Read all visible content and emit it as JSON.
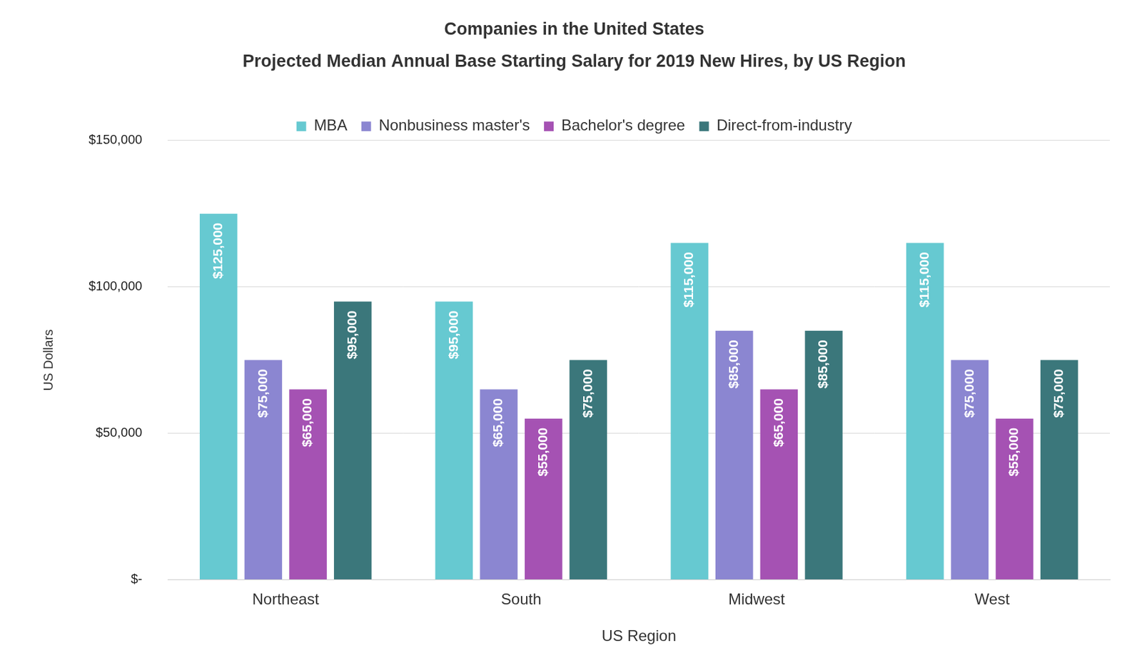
{
  "chart_data": {
    "type": "bar",
    "title": "Companies in the United States",
    "subtitle": "Projected Median Annual Base Starting Salary for 2019 New Hires, by US Region",
    "x_label": "US Region",
    "y_label": "US Dollars",
    "categories": [
      "Northeast",
      "South",
      "Midwest",
      "West"
    ],
    "series": [
      {
        "name": "MBA",
        "color": "#66c9d1",
        "values": [
          125000,
          95000,
          115000,
          115000
        ],
        "value_labels": [
          "$125,000",
          "$95,000",
          "$115,000",
          "$115,000"
        ]
      },
      {
        "name": "Nonbusiness master's",
        "color": "#8b86d1",
        "values": [
          75000,
          65000,
          85000,
          75000
        ],
        "value_labels": [
          "$75,000",
          "$65,000",
          "$85,000",
          "$75,000"
        ]
      },
      {
        "name": "Bachelor's degree",
        "color": "#a552b3",
        "values": [
          65000,
          55000,
          65000,
          55000
        ],
        "value_labels": [
          "$65,000",
          "$55,000",
          "$65,000",
          "$55,000"
        ]
      },
      {
        "name": "Direct-from-industry",
        "color": "#3b777b",
        "values": [
          95000,
          75000,
          85000,
          75000
        ],
        "value_labels": [
          "$95,000",
          "$75,000",
          "$85,000",
          "$75,000"
        ]
      }
    ],
    "ylim": [
      0,
      150000
    ],
    "yticks": [
      {
        "value": 0,
        "label": "$-"
      },
      {
        "value": 50000,
        "label": "$50,000"
      },
      {
        "value": 100000,
        "label": "$100,000"
      },
      {
        "value": 150000,
        "label": "$150,000"
      }
    ],
    "grid": true,
    "legend": "top",
    "data_labels": true
  }
}
